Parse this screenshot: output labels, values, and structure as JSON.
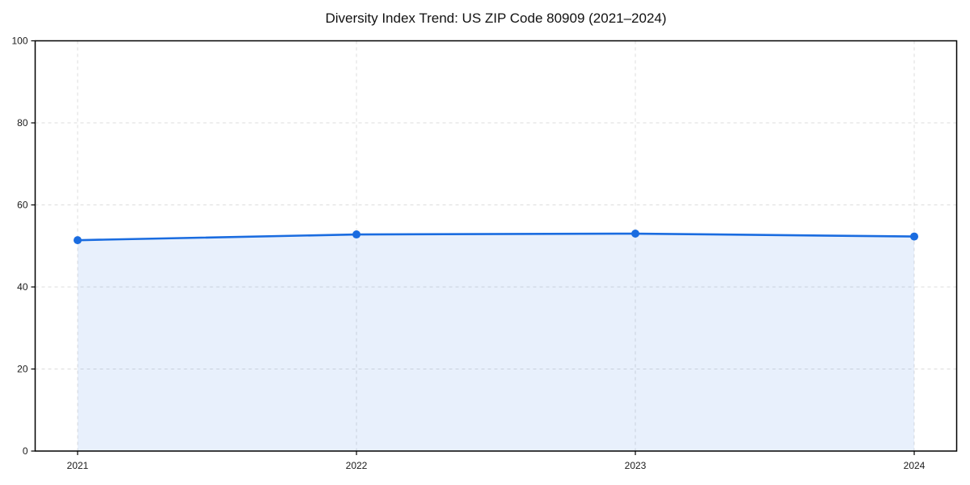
{
  "chart_data": {
    "type": "line",
    "title": "Diversity Index Trend: US ZIP Code 80909 (2021–2024)",
    "x": [
      "2021",
      "2022",
      "2023",
      "2024"
    ],
    "series": [
      {
        "name": "Diversity Index",
        "values": [
          51.4,
          52.8,
          53.0,
          52.3
        ]
      }
    ],
    "ylim": [
      0,
      100
    ],
    "yticks": [
      0,
      20,
      40,
      60,
      80,
      100
    ],
    "grid": true,
    "grid_style": "dashed",
    "legend": false,
    "area_fill": true,
    "marker": "circle",
    "colors": {
      "line": "#1a6ce0",
      "marker": "#1a6ce0",
      "fill": "rgba(26,108,224,0.10)",
      "grid": "#dcdcdc",
      "spine": "#000000",
      "tick_text": "#1a1a1a",
      "background": "#ffffff"
    }
  }
}
